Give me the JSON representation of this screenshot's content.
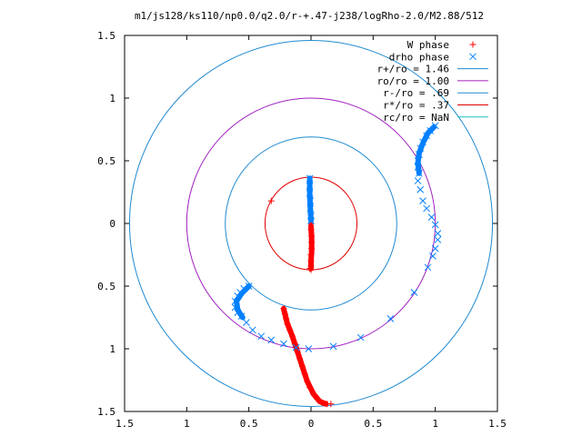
{
  "chart_data": {
    "type": "scatter",
    "title": "m1/js128/ks110/np0.0/q2.0/r-+.47-j238/logRho-2.0/M2.88/512",
    "xlim": [
      -1.5,
      1.5
    ],
    "ylim": [
      -1.5,
      1.5
    ],
    "x_ticks": [
      -1.5,
      -1,
      -0.5,
      0,
      0.5,
      1,
      1.5
    ],
    "x_tick_labels": [
      "1.5",
      "1",
      "0.5",
      "0",
      "0.5",
      "1",
      "1.5"
    ],
    "y_ticks": [
      1.5,
      1,
      0.5,
      0,
      -0.5,
      -1,
      -1.5
    ],
    "y_tick_labels": [
      "1.5",
      "1",
      "0.5",
      "0",
      "0.5",
      "1",
      "1.5"
    ],
    "legend_position": "top-right",
    "series": [
      {
        "name": "W phase",
        "marker": "plus",
        "color": "#ff0000",
        "points": [
          [
            -0.32,
            0.18
          ],
          [
            0.0,
            -0.37
          ],
          [
            0.0,
            -0.3
          ],
          [
            0.0,
            -0.25
          ],
          [
            0.005,
            -0.2
          ],
          [
            0.005,
            -0.15
          ],
          [
            0.005,
            -0.1
          ],
          [
            0.0,
            -0.05
          ],
          [
            0.0,
            0.0
          ],
          [
            0.0,
            -0.34
          ],
          [
            -0.01,
            -0.36
          ],
          [
            -0.22,
            -0.68
          ],
          [
            -0.21,
            -0.72
          ],
          [
            -0.2,
            -0.76
          ],
          [
            -0.19,
            -0.8
          ],
          [
            -0.17,
            -0.85
          ],
          [
            -0.15,
            -0.9
          ],
          [
            -0.13,
            -0.96
          ],
          [
            -0.11,
            -1.02
          ],
          [
            -0.09,
            -1.08
          ],
          [
            -0.07,
            -1.14
          ],
          [
            -0.05,
            -1.2
          ],
          [
            -0.03,
            -1.26
          ],
          [
            -0.01,
            -1.31
          ],
          [
            0.02,
            -1.36
          ],
          [
            0.05,
            -1.4
          ],
          [
            0.09,
            -1.43
          ],
          [
            0.13,
            -1.44
          ],
          [
            0.16,
            -1.44
          ]
        ]
      },
      {
        "name": "drho phase",
        "marker": "cross",
        "color": "#0080ff",
        "points": [
          [
            -0.01,
            0.36
          ],
          [
            -0.01,
            0.3
          ],
          [
            -0.01,
            0.24
          ],
          [
            -0.005,
            0.18
          ],
          [
            -0.005,
            0.12
          ],
          [
            0.0,
            0.06
          ],
          [
            0.0,
            0.02
          ],
          [
            0.87,
            0.4
          ],
          [
            0.86,
            0.45
          ],
          [
            0.86,
            0.5
          ],
          [
            0.87,
            0.55
          ],
          [
            0.88,
            0.6
          ],
          [
            0.9,
            0.65
          ],
          [
            0.93,
            0.7
          ],
          [
            0.96,
            0.74
          ],
          [
            1.0,
            0.78
          ],
          [
            0.86,
            0.34
          ],
          [
            0.88,
            0.27
          ],
          [
            0.9,
            0.18
          ],
          [
            0.93,
            0.12
          ],
          [
            0.97,
            0.05
          ],
          [
            1.0,
            -0.01
          ],
          [
            1.02,
            -0.08
          ],
          [
            1.02,
            -0.13
          ],
          [
            1.0,
            -0.2
          ],
          [
            0.98,
            -0.26
          ],
          [
            0.94,
            -0.35
          ],
          [
            0.83,
            -0.55
          ],
          [
            0.64,
            -0.76
          ],
          [
            0.4,
            -0.91
          ],
          [
            0.18,
            -0.98
          ],
          [
            -0.02,
            -1.0
          ],
          [
            -0.12,
            -0.99
          ],
          [
            -0.22,
            -0.96
          ],
          [
            -0.32,
            -0.93
          ],
          [
            -0.4,
            -0.9
          ],
          [
            -0.47,
            -0.85
          ],
          [
            -0.52,
            -0.79
          ],
          [
            -0.56,
            -0.74
          ],
          [
            -0.59,
            -0.71
          ],
          [
            -0.61,
            -0.67
          ],
          [
            -0.61,
            -0.62
          ],
          [
            -0.59,
            -0.58
          ],
          [
            -0.57,
            -0.55
          ],
          [
            -0.54,
            -0.52
          ],
          [
            -0.5,
            -0.5
          ]
        ]
      }
    ],
    "dense_segments": [
      {
        "series": "W phase",
        "color": "#ff0000",
        "width": 6,
        "path": [
          [
            -0.22,
            -0.68
          ],
          [
            -0.19,
            -0.8
          ],
          [
            -0.15,
            -0.9
          ],
          [
            -0.11,
            -1.02
          ],
          [
            -0.07,
            -1.14
          ],
          [
            -0.03,
            -1.26
          ],
          [
            0.02,
            -1.36
          ],
          [
            0.07,
            -1.42
          ],
          [
            0.12,
            -1.44
          ]
        ]
      },
      {
        "series": "W phase",
        "color": "#ff0000",
        "width": 6,
        "path": [
          [
            0.0,
            -0.02
          ],
          [
            0.005,
            -0.12
          ],
          [
            0.005,
            -0.22
          ],
          [
            0.0,
            -0.3
          ],
          [
            0.0,
            -0.36
          ]
        ]
      },
      {
        "series": "drho phase",
        "color": "#0080ff",
        "width": 6,
        "path": [
          [
            -0.01,
            0.36
          ],
          [
            -0.01,
            0.24
          ],
          [
            -0.005,
            0.12
          ],
          [
            0.0,
            0.02
          ]
        ]
      },
      {
        "series": "drho phase",
        "color": "#0080ff",
        "width": 6,
        "path": [
          [
            0.87,
            0.4
          ],
          [
            0.86,
            0.48
          ],
          [
            0.87,
            0.56
          ],
          [
            0.9,
            0.64
          ],
          [
            0.94,
            0.72
          ],
          [
            0.99,
            0.77
          ]
        ]
      },
      {
        "series": "drho phase",
        "color": "#0080ff",
        "width": 6,
        "path": [
          [
            -0.5,
            -0.5
          ],
          [
            -0.56,
            -0.56
          ],
          [
            -0.6,
            -0.62
          ],
          [
            -0.59,
            -0.69
          ],
          [
            -0.55,
            -0.75
          ]
        ]
      }
    ],
    "circles": [
      {
        "name": "r+/ro = 1.46",
        "radius": 1.46,
        "color": "#1f8ad1"
      },
      {
        "name": "ro/ro = 1.00",
        "radius": 1.0,
        "color": "#a020c0"
      },
      {
        "name": "r-/ro = .69",
        "radius": 0.69,
        "color": "#1f8ad1"
      },
      {
        "name": "r*/ro = .37",
        "radius": 0.37,
        "color": "#e00000"
      },
      {
        "name": "rc/ro = NaN",
        "radius": null,
        "color": "#20c0c0"
      }
    ]
  }
}
